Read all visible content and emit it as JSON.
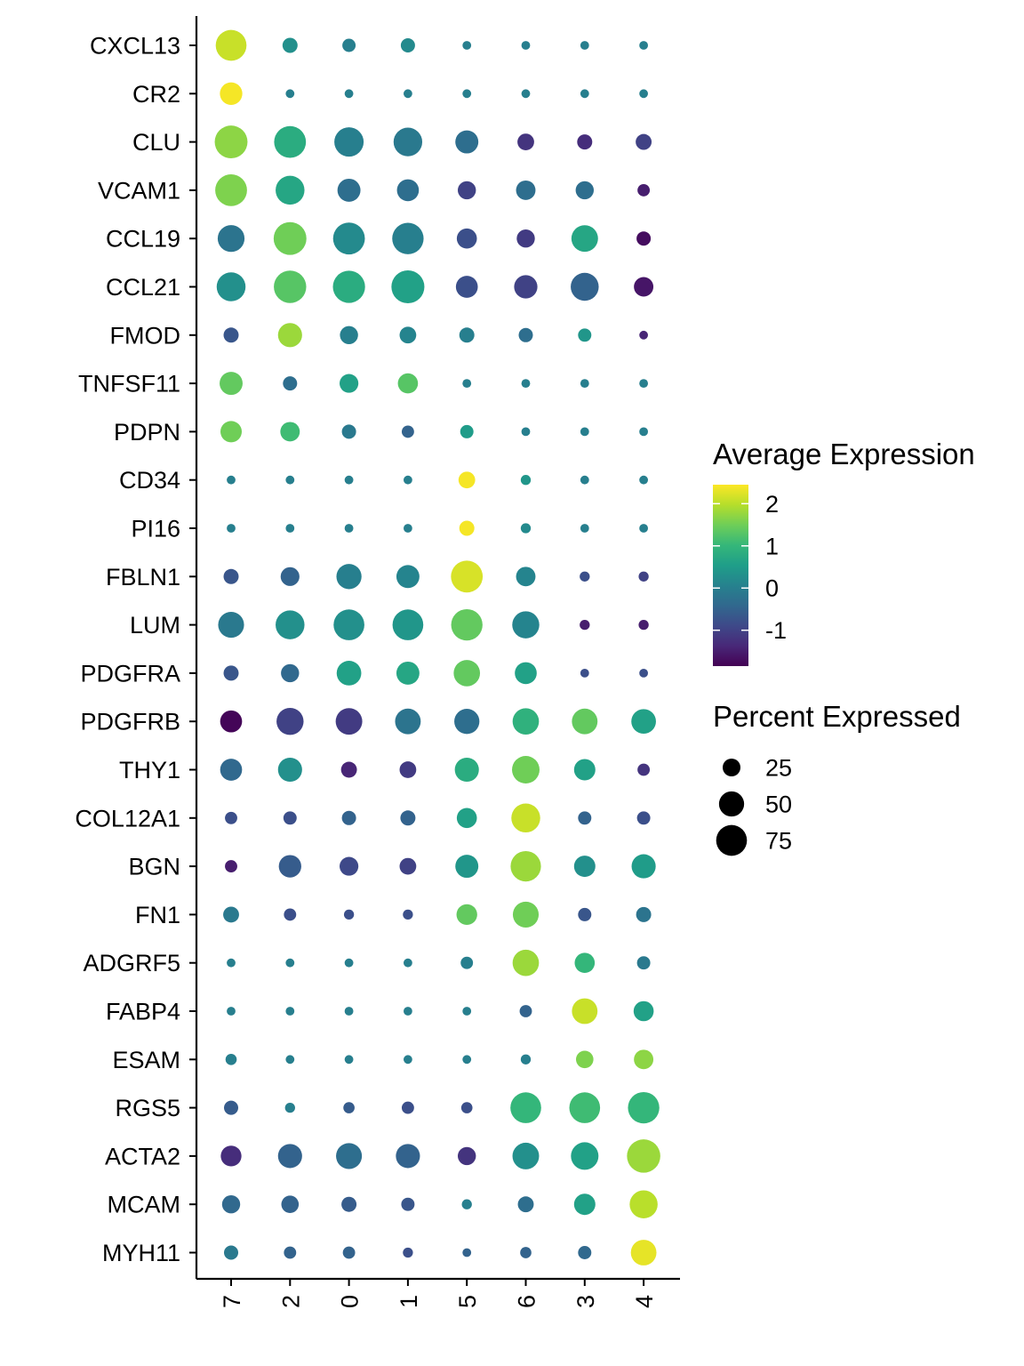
{
  "chart_data": {
    "type": "dotplot",
    "title": "",
    "xlabel": "",
    "ylabel": "",
    "x_categories": [
      "7",
      "2",
      "0",
      "1",
      "5",
      "6",
      "3",
      "4"
    ],
    "y_categories": [
      "CXCL13",
      "CR2",
      "CLU",
      "VCAM1",
      "CCL19",
      "CCL21",
      "FMOD",
      "TNFSF11",
      "PDPN",
      "CD34",
      "PI16",
      "FBLN1",
      "LUM",
      "PDGFRA",
      "PDGFRB",
      "THY1",
      "COL12A1",
      "BGN",
      "FN1",
      "ADGRF5",
      "FABP4",
      "ESAM",
      "RGS5",
      "ACTA2",
      "MCAM",
      "MYH11"
    ],
    "avg_expression": [
      [
        2.1,
        0.3,
        0.0,
        0.2,
        0.0,
        0.0,
        0.0,
        0.0
      ],
      [
        2.4,
        0.0,
        0.0,
        0.0,
        0.0,
        0.0,
        0.0,
        0.0
      ],
      [
        1.7,
        0.8,
        0.0,
        -0.1,
        -0.3,
        -1.2,
        -1.3,
        -1.0
      ],
      [
        1.6,
        0.7,
        -0.3,
        -0.3,
        -1.0,
        -0.3,
        -0.3,
        -1.5
      ],
      [
        -0.2,
        1.5,
        0.2,
        0.0,
        -0.8,
        -1.1,
        0.7,
        -1.7
      ],
      [
        0.3,
        1.3,
        0.8,
        0.6,
        -0.8,
        -1.0,
        -0.5,
        -1.6
      ],
      [
        -0.7,
        1.8,
        0.0,
        0.1,
        0.0,
        -0.3,
        0.4,
        -1.4
      ],
      [
        1.4,
        -0.3,
        0.6,
        1.3,
        0.0,
        0.0,
        0.0,
        0.0
      ],
      [
        1.5,
        1.1,
        -0.1,
        -0.5,
        0.5,
        0.0,
        0.0,
        0.0
      ],
      [
        0.0,
        0.0,
        0.0,
        0.0,
        2.4,
        0.4,
        0.0,
        0.0
      ],
      [
        0.0,
        0.0,
        0.0,
        0.0,
        2.4,
        0.2,
        0.0,
        0.0
      ],
      [
        -0.7,
        -0.5,
        0.0,
        0.1,
        2.2,
        0.1,
        -0.8,
        -1.0
      ],
      [
        -0.1,
        0.3,
        0.3,
        0.4,
        1.4,
        0.1,
        -1.5,
        -1.5
      ],
      [
        -0.7,
        -0.4,
        0.6,
        0.7,
        1.4,
        0.6,
        -0.8,
        -0.8
      ],
      [
        -1.8,
        -1.0,
        -1.1,
        -0.2,
        -0.3,
        0.9,
        1.4,
        0.6
      ],
      [
        -0.4,
        0.3,
        -1.4,
        -1.1,
        0.8,
        1.5,
        0.6,
        -1.2
      ],
      [
        -0.8,
        -0.8,
        -0.5,
        -0.5,
        0.6,
        2.1,
        -0.5,
        -0.8
      ],
      [
        -1.5,
        -0.6,
        -0.9,
        -1.0,
        0.4,
        1.8,
        0.3,
        0.5
      ],
      [
        -0.1,
        -0.8,
        -0.8,
        -0.8,
        1.4,
        1.5,
        -0.7,
        -0.2
      ],
      [
        0.0,
        0.0,
        0.0,
        0.0,
        0.0,
        1.8,
        1.0,
        -0.1
      ],
      [
        0.0,
        0.0,
        0.0,
        0.0,
        0.0,
        -0.5,
        2.1,
        0.6
      ],
      [
        0.0,
        0.0,
        0.0,
        0.0,
        0.0,
        0.0,
        1.6,
        1.7
      ],
      [
        -0.6,
        0.0,
        -0.6,
        -0.8,
        -0.8,
        1.0,
        1.1,
        1.0
      ],
      [
        -1.3,
        -0.5,
        -0.3,
        -0.5,
        -1.2,
        0.3,
        0.6,
        1.8
      ],
      [
        -0.4,
        -0.5,
        -0.6,
        -0.7,
        0.0,
        -0.3,
        0.6,
        2.0
      ],
      [
        -0.1,
        -0.5,
        -0.5,
        -0.8,
        -0.5,
        -0.5,
        -0.4,
        2.3
      ]
    ],
    "pct_expressed": [
      [
        75,
        18,
        14,
        16,
        6,
        6,
        6,
        6
      ],
      [
        40,
        6,
        6,
        6,
        6,
        6,
        6,
        6
      ],
      [
        85,
        80,
        68,
        65,
        42,
        22,
        18,
        20
      ],
      [
        80,
        66,
        42,
        38,
        26,
        30,
        26,
        12
      ],
      [
        57,
        85,
        80,
        78,
        32,
        26,
        56,
        16
      ],
      [
        66,
        83,
        82,
        86,
        38,
        43,
        62,
        30
      ],
      [
        18,
        46,
        26,
        22,
        18,
        16,
        14,
        6
      ],
      [
        42,
        16,
        28,
        32,
        6,
        6,
        6,
        6
      ],
      [
        36,
        30,
        16,
        12,
        14,
        6,
        6,
        6
      ],
      [
        6,
        6,
        6,
        6,
        22,
        8,
        6,
        6
      ],
      [
        6,
        6,
        6,
        6,
        18,
        8,
        6,
        6
      ],
      [
        18,
        28,
        50,
        42,
        80,
        30,
        8,
        8
      ],
      [
        53,
        66,
        75,
        75,
        78,
        58,
        8,
        8
      ],
      [
        18,
        26,
        48,
        42,
        55,
        38,
        6,
        6
      ],
      [
        38,
        58,
        56,
        52,
        50,
        55,
        52,
        48
      ],
      [
        38,
        46,
        20,
        22,
        46,
        60,
        36,
        12
      ],
      [
        12,
        14,
        16,
        18,
        32,
        66,
        14,
        14
      ],
      [
        12,
        40,
        28,
        22,
        42,
        73,
        36,
        46
      ],
      [
        20,
        12,
        8,
        8,
        34,
        53,
        14,
        18
      ],
      [
        6,
        6,
        6,
        6,
        12,
        55,
        32,
        14
      ],
      [
        6,
        6,
        6,
        6,
        6,
        12,
        52,
        32
      ],
      [
        10,
        6,
        6,
        6,
        6,
        8,
        24,
        30
      ],
      [
        16,
        8,
        10,
        12,
        10,
        75,
        75,
        78
      ],
      [
        34,
        46,
        53,
        46,
        26,
        56,
        60,
        88
      ],
      [
        26,
        24,
        18,
        14,
        8,
        20,
        36,
        62
      ],
      [
        16,
        12,
        12,
        8,
        6,
        10,
        14,
        52
      ]
    ],
    "legend": {
      "color_title": "Average Expression",
      "color_ticks": [
        2,
        1,
        0,
        -1
      ],
      "color_tick_labels": [
        "2",
        "1",
        "0",
        "-1"
      ],
      "color_range": [
        -1.85,
        2.45
      ],
      "colormap": [
        "#440154",
        "#482878",
        "#3e4989",
        "#31688e",
        "#26828e",
        "#1f9e89",
        "#35b779",
        "#6ece58",
        "#b5de2b",
        "#fde725"
      ],
      "size_title": "Percent Expressed",
      "size_values": [
        25,
        50,
        75
      ],
      "size_labels": [
        "25",
        "50",
        "75"
      ],
      "placement": "right"
    },
    "grid": false
  }
}
